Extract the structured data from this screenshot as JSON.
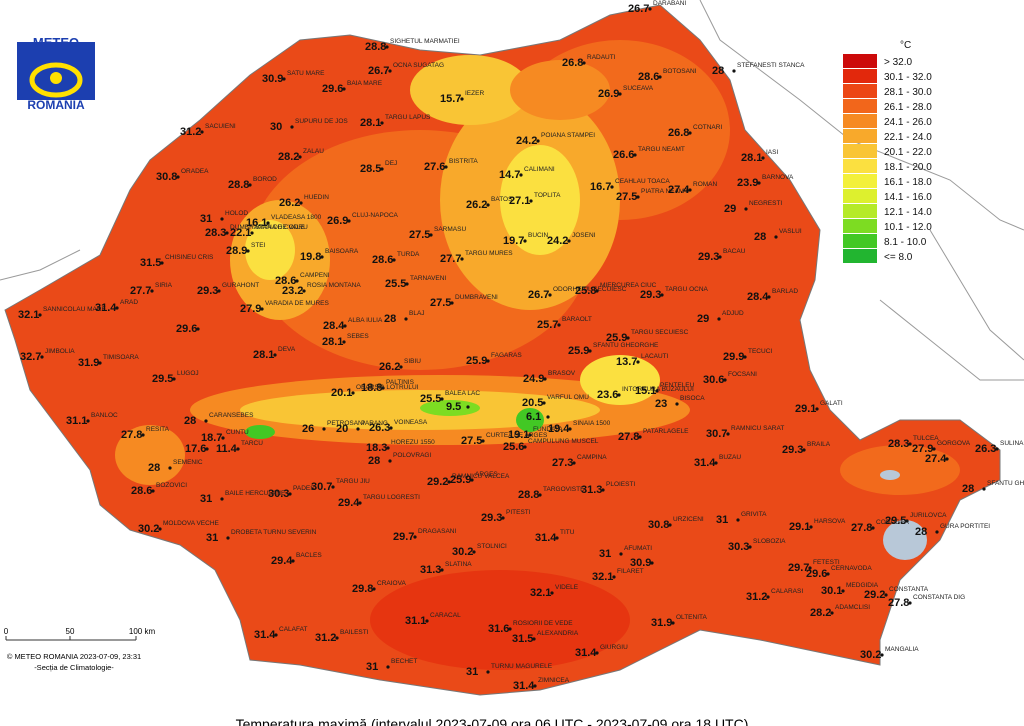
{
  "logo": {
    "line1": "METEO",
    "line2": "ROMANIA"
  },
  "legend": {
    "unit": "°C",
    "classes": [
      {
        "label": "> 32.0",
        "color": "#cc0a0a"
      },
      {
        "label": "30.1 - 32.0",
        "color": "#e2280c"
      },
      {
        "label": "28.1 - 30.0",
        "color": "#ec4614"
      },
      {
        "label": "26.1 - 28.0",
        "color": "#f2661b"
      },
      {
        "label": "24.1 - 26.0",
        "color": "#f68a22"
      },
      {
        "label": "22.1 - 24.0",
        "color": "#f8a92b"
      },
      {
        "label": "20.1 - 22.0",
        "color": "#f9c535"
      },
      {
        "label": "18.1 - 20.0",
        "color": "#fbe040"
      },
      {
        "label": "16.1 - 18.0",
        "color": "#f3f03a"
      },
      {
        "label": "14.1 - 16.0",
        "color": "#ddf02e"
      },
      {
        "label": "12.1 - 14.0",
        "color": "#b5ea28"
      },
      {
        "label": "10.1 - 12.0",
        "color": "#7ddc22"
      },
      {
        "label": "8.1 - 10.0",
        "color": "#42c824"
      },
      {
        "label": "<= 8.0",
        "color": "#22b530"
      }
    ]
  },
  "stations": [
    {
      "name": "DARABANI",
      "value": 26.7
    },
    {
      "name": "SIGHETUL MARMATIEI",
      "value": 28.8
    },
    {
      "name": "OCNA SUGATAG",
      "value": 26.7
    },
    {
      "name": "SATU MARE",
      "value": 30.9
    },
    {
      "name": "BAIA MARE",
      "value": 29.6
    },
    {
      "name": "IEZER",
      "value": 15.7
    },
    {
      "name": "RADAUTI",
      "value": 26.8
    },
    {
      "name": "BOTOSANI",
      "value": 28.6
    },
    {
      "name": "STEFANESTI STANCA",
      "value": 28
    },
    {
      "name": "SUCEAVA",
      "value": 26.9
    },
    {
      "name": "SUPURU DE JOS",
      "value": 30
    },
    {
      "name": "SACUIENI",
      "value": 31.2
    },
    {
      "name": "TARGU LAPUS",
      "value": 28.1
    },
    {
      "name": "POIANA STAMPEI",
      "value": 24.2
    },
    {
      "name": "COTNARI",
      "value": 26.8
    },
    {
      "name": "ZALAU",
      "value": 28.2
    },
    {
      "name": "DEJ",
      "value": 28.5
    },
    {
      "name": "BISTRITA",
      "value": 27.6
    },
    {
      "name": "CALIMANI",
      "value": 14.7
    },
    {
      "name": "TARGU NEAMT",
      "value": 26.6
    },
    {
      "name": "IASI",
      "value": 28.1
    },
    {
      "name": "ORADEA",
      "value": 30.8
    },
    {
      "name": "BOROD",
      "value": 28.8
    },
    {
      "name": "CEAHLAU TOACA",
      "value": 16.7
    },
    {
      "name": "PIATRA NEAMT",
      "value": 27.5
    },
    {
      "name": "ROMAN",
      "value": 27.4
    },
    {
      "name": "BARNOVA",
      "value": 23.9
    },
    {
      "name": "HUEDIN",
      "value": 26.2
    },
    {
      "name": "BATOS",
      "value": 26.2
    },
    {
      "name": "TOPLITA",
      "value": 27.1
    },
    {
      "name": "NEGRESTI",
      "value": 29
    },
    {
      "name": "HOLOD",
      "value": 31
    },
    {
      "name": "VLADEASA 1800",
      "value": 16.1
    },
    {
      "name": "CLUJ-NAPOCA",
      "value": 26.9
    },
    {
      "name": "SARMASU",
      "value": 27.5
    },
    {
      "name": "BUCIN",
      "value": 19.7
    },
    {
      "name": "JOSENI",
      "value": 24.2
    },
    {
      "name": "VASLUI",
      "value": 28
    },
    {
      "name": "DUMBRAVITA DE CODRU",
      "value": 28.3
    },
    {
      "name": "STANA DE VALE",
      "value": 22.1
    },
    {
      "name": "CHISINEU CRIS",
      "value": 31.5
    },
    {
      "name": "STEI",
      "value": 28.9
    },
    {
      "name": "BAISOARA",
      "value": 19.8
    },
    {
      "name": "TURDA",
      "value": 28.6
    },
    {
      "name": "TARGU MURES",
      "value": 27.7
    },
    {
      "name": "BACAU",
      "value": 29.3
    },
    {
      "name": "SIRIA",
      "value": 27.7
    },
    {
      "name": "GURAHONT",
      "value": 29.3
    },
    {
      "name": "CAMPENI",
      "value": 28.6
    },
    {
      "name": "ROSIA MONTANA",
      "value": 23.2
    },
    {
      "name": "TARNAVENI",
      "value": 25.5
    },
    {
      "name": "ODORHEIUL SECUIESC",
      "value": 26.7
    },
    {
      "name": "MIERCUREA CIUC",
      "value": 25.8
    },
    {
      "name": "TARGU OCNA",
      "value": 29.3
    },
    {
      "name": "BARLAD",
      "value": 28.4
    },
    {
      "name": "SANNICOLAU MARE",
      "value": 32.1
    },
    {
      "name": "ARAD",
      "value": 31.4
    },
    {
      "name": "VARADIA DE MURES",
      "value": 27.9
    },
    {
      "name": "DUMBRAVENI",
      "value": 27.5
    },
    {
      "name": "BLAJ",
      "value": 28
    },
    {
      "value": 29.6
    },
    {
      "name": "ALBA IULIA",
      "value": 28.4
    },
    {
      "name": "BARAOLT",
      "value": 25.7
    },
    {
      "name": "ADJUD",
      "value": 29
    },
    {
      "name": "SEBES",
      "value": 28.1
    },
    {
      "name": "TARGU SECUIESC",
      "value": 25.9
    },
    {
      "name": "JIMBOLIA",
      "value": 32.7
    },
    {
      "name": "TIMISOARA",
      "value": 31.9
    },
    {
      "name": "DEVA",
      "value": 28.1
    },
    {
      "name": "SIBIU",
      "value": 26.2
    },
    {
      "name": "FAGARAS",
      "value": 25.9
    },
    {
      "name": "SFANTU GHEORGHE",
      "value": 25.9
    },
    {
      "name": "LACAUTI",
      "value": 13.7
    },
    {
      "name": "TECUCI",
      "value": 29.9
    },
    {
      "name": "LUGOJ",
      "value": 29.5
    },
    {
      "name": "PALTINIS",
      "value": 18.8
    },
    {
      "name": "BALEA LAC",
      "value": 25.5
    },
    {
      "value": 9.5
    },
    {
      "name": "BRASOV",
      "value": 24.9
    },
    {
      "name": "INTORSURA BUZAULUI",
      "value": 23.6
    },
    {
      "name": "PENTELEU",
      "value": 15.1
    },
    {
      "name": "BISOCA",
      "value": 23
    },
    {
      "name": "FOCSANI",
      "value": 30.6
    },
    {
      "name": "OBARSIA LOTRULUI",
      "value": 20.1
    },
    {
      "name": "VARFUL OMU",
      "value": 20.5
    },
    {
      "value": 6.1
    },
    {
      "name": "BANLOC",
      "value": 31.1
    },
    {
      "name": "CARANSEBES",
      "value": 28
    },
    {
      "name": "GALATI",
      "value": 29.1
    },
    {
      "name": "RESITA",
      "value": 27.8
    },
    {
      "name": "CUNTU",
      "value": 18.7
    },
    {
      "name": "PETROSANI",
      "value": 26
    },
    {
      "name": "PARANG",
      "value": 20
    },
    {
      "name": "VOINEASA",
      "value": 26.3
    },
    {
      "name": "FUNDATA",
      "value": 19.1
    },
    {
      "name": "SINAIA 1500",
      "value": 19.4
    },
    {
      "name": "RAMNICU SARAT",
      "value": 30.7
    },
    {
      "value": 17.6
    },
    {
      "name": "TARCU",
      "value": 11.4
    },
    {
      "name": "HOREZU 1550",
      "value": 18.3
    },
    {
      "name": "CAMPULUNG MUSCEL",
      "value": 25.6
    },
    {
      "name": "CURTEA DE ARGES",
      "value": 27.5
    },
    {
      "name": "PATARLAGELE",
      "value": 27.8
    },
    {
      "name": "TULCEA",
      "value": 28.3
    },
    {
      "name": "GORGOVA",
      "value": 27.9
    },
    {
      "value": 27.4
    },
    {
      "name": "SULINA",
      "value": 26.3
    },
    {
      "name": "SFANTU GHEORGHE",
      "value": 28
    },
    {
      "name": "BRAILA",
      "value": 29.3
    },
    {
      "name": "BUZAU",
      "value": 31.4
    },
    {
      "name": "SEMENIC",
      "value": 28
    },
    {
      "name": "POLOVRAGI",
      "value": 28
    },
    {
      "name": "CAMPINA",
      "value": 27.3
    },
    {
      "name": "PADES",
      "value": 30.3
    },
    {
      "name": "BOZOVICI",
      "value": 28.6
    },
    {
      "name": "TARGU JIU",
      "value": 30.7
    },
    {
      "name": "RAMNICU VALCEA",
      "value": 29.2
    },
    {
      "name": "ARGES",
      "value": 25.9
    },
    {
      "name": "PLOIESTI",
      "value": 31.3
    },
    {
      "name": "TARGOVISTE",
      "value": 28.8
    },
    {
      "name": "BAILE HERCULANE",
      "value": 31
    },
    {
      "name": "TARGU LOGRESTI",
      "value": 29.4
    },
    {
      "name": "PITESTI",
      "value": 29.3
    },
    {
      "name": "URZICENI",
      "value": 30.8
    },
    {
      "name": "GRIVITA",
      "value": 31
    },
    {
      "name": "HARSOVA",
      "value": 29.1
    },
    {
      "name": "JURILOVCA",
      "value": 29.5
    },
    {
      "name": "CORUGEA",
      "value": 27.8
    },
    {
      "name": "GURA PORTITEI",
      "value": 28
    },
    {
      "name": "MOLDOVA VECHE",
      "value": 30.2
    },
    {
      "name": "DROBETA TURNU SEVERIN",
      "value": 31
    },
    {
      "name": "DRAGASANI",
      "value": 29.7
    },
    {
      "name": "STOLNICI",
      "value": 30.2
    },
    {
      "name": "TITU",
      "value": 31.4
    },
    {
      "name": "AFUMATI",
      "value": 31
    },
    {
      "value": 30.9
    },
    {
      "name": "SLOBOZIA",
      "value": 30.3
    },
    {
      "name": "BACLES",
      "value": 29.4
    },
    {
      "name": "SLATINA",
      "value": 31.3
    },
    {
      "name": "FILARET",
      "value": 32.1
    },
    {
      "name": "FETESTI",
      "value": 29.7
    },
    {
      "name": "CERNAVODA",
      "value": 29.6
    },
    {
      "name": "CRAIOVA",
      "value": 29.8
    },
    {
      "name": "VIDELE",
      "value": 32.1
    },
    {
      "name": "MEDGIDIA",
      "value": 30.1
    },
    {
      "name": "CONSTANTA",
      "value": 29.2
    },
    {
      "name": "CONSTANTA DIG",
      "value": 27.8
    },
    {
      "name": "CALARASI",
      "value": 31.2
    },
    {
      "name": "ADAMCLISI",
      "value": 28.2
    },
    {
      "name": "CARACAL",
      "value": 31.1
    },
    {
      "name": "ROSIORII DE VEDE",
      "value": 31.6
    },
    {
      "name": "ALEXANDRIA",
      "value": 31.5
    },
    {
      "name": "OLTENITA",
      "value": 31.9
    },
    {
      "name": "CALAFAT",
      "value": 31.4
    },
    {
      "name": "BAILESTI",
      "value": 31.2
    },
    {
      "name": "GIURGIU",
      "value": 31.4
    },
    {
      "name": "MANGALIA",
      "value": 30.2
    },
    {
      "name": "BECHET",
      "value": 31
    },
    {
      "name": "TURNU MAGURELE",
      "value": 31
    },
    {
      "name": "ZIMNICEA",
      "value": 31.4
    }
  ],
  "scale": {
    "labels": [
      "0",
      "50",
      "100 km"
    ]
  },
  "copyright": "© METEO ROMANIA 2023-07-09, 23:31",
  "department": "-Secția de Climatologie-",
  "caption": "Temperatura maximă (intervalul 2023-07-09 ora 06 UTC - 2023-07-09 ora 18 UTC)"
}
